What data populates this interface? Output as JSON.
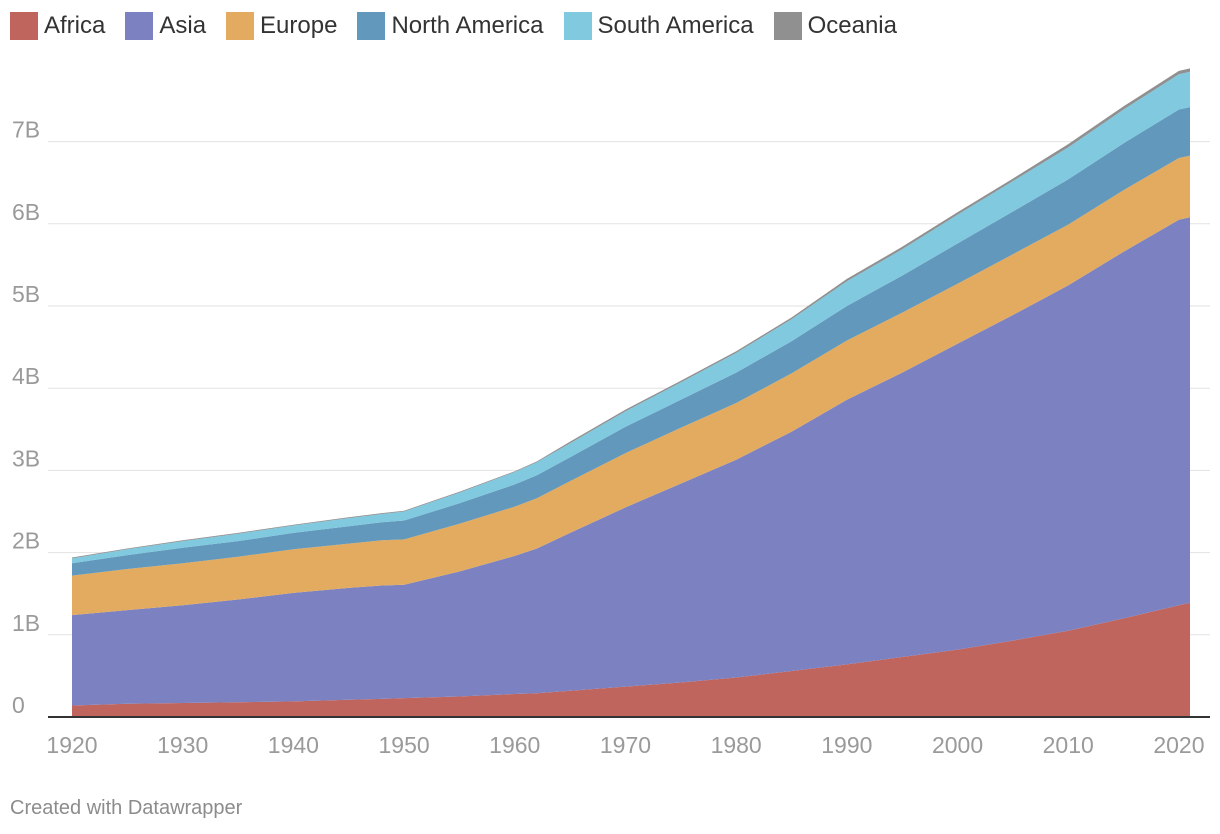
{
  "chart_data": {
    "type": "area",
    "stacked": true,
    "title": "",
    "xlabel": "",
    "ylabel": "",
    "x": [
      1920,
      1925,
      1930,
      1935,
      1940,
      1945,
      1948,
      1950,
      1955,
      1960,
      1962,
      1965,
      1970,
      1975,
      1980,
      1985,
      1990,
      1995,
      2000,
      2005,
      2010,
      2015,
      2020,
      2021
    ],
    "series": [
      {
        "name": "Africa",
        "color": "#c0645e",
        "values": [
          0.14,
          0.16,
          0.17,
          0.18,
          0.19,
          0.21,
          0.22,
          0.23,
          0.25,
          0.28,
          0.29,
          0.32,
          0.37,
          0.42,
          0.48,
          0.56,
          0.64,
          0.73,
          0.82,
          0.93,
          1.05,
          1.2,
          1.36,
          1.39
        ]
      },
      {
        "name": "Asia",
        "color": "#7c82c1",
        "values": [
          1.1,
          1.14,
          1.19,
          1.25,
          1.32,
          1.36,
          1.38,
          1.38,
          1.52,
          1.68,
          1.76,
          1.92,
          2.18,
          2.42,
          2.65,
          2.91,
          3.22,
          3.46,
          3.72,
          3.96,
          4.2,
          4.46,
          4.69,
          4.69
        ]
      },
      {
        "name": "Europe",
        "color": "#e2ab5f",
        "values": [
          0.48,
          0.5,
          0.51,
          0.52,
          0.53,
          0.54,
          0.55,
          0.55,
          0.58,
          0.6,
          0.61,
          0.63,
          0.66,
          0.68,
          0.69,
          0.71,
          0.72,
          0.73,
          0.73,
          0.74,
          0.74,
          0.75,
          0.75,
          0.75
        ]
      },
      {
        "name": "North America",
        "color": "#6198bb",
        "values": [
          0.15,
          0.17,
          0.19,
          0.19,
          0.2,
          0.21,
          0.22,
          0.23,
          0.25,
          0.27,
          0.28,
          0.29,
          0.32,
          0.34,
          0.37,
          0.39,
          0.42,
          0.45,
          0.49,
          0.52,
          0.55,
          0.57,
          0.59,
          0.59
        ]
      },
      {
        "name": "South America",
        "color": "#81c9df",
        "values": [
          0.06,
          0.07,
          0.08,
          0.09,
          0.09,
          0.1,
          0.1,
          0.11,
          0.13,
          0.15,
          0.16,
          0.17,
          0.19,
          0.21,
          0.24,
          0.27,
          0.3,
          0.32,
          0.35,
          0.37,
          0.39,
          0.41,
          0.43,
          0.43
        ]
      },
      {
        "name": "Oceania",
        "color": "#909090",
        "values": [
          0.01,
          0.01,
          0.01,
          0.01,
          0.01,
          0.01,
          0.01,
          0.01,
          0.01,
          0.01,
          0.01,
          0.02,
          0.02,
          0.02,
          0.02,
          0.02,
          0.03,
          0.03,
          0.03,
          0.03,
          0.04,
          0.04,
          0.04,
          0.04
        ]
      }
    ],
    "y_ticks": [
      0,
      1,
      2,
      3,
      4,
      5,
      6,
      7
    ],
    "y_tick_labels": [
      "0",
      "1B",
      "2B",
      "3B",
      "4B",
      "5B",
      "6B",
      "7B"
    ],
    "x_ticks": [
      1920,
      1930,
      1940,
      1950,
      1960,
      1970,
      1980,
      1990,
      2000,
      2010,
      2020
    ],
    "x_tick_labels": [
      "1920",
      "1930",
      "1940",
      "1950",
      "1960",
      "1970",
      "1980",
      "1990",
      "2000",
      "2010",
      "2020"
    ],
    "ylim": [
      0,
      8
    ],
    "xlim": [
      1920,
      2021
    ],
    "legend_position": "top-left",
    "grid": true
  },
  "legend": [
    {
      "label": "Africa",
      "color": "#c0645e"
    },
    {
      "label": "Asia",
      "color": "#7c82c1"
    },
    {
      "label": "Europe",
      "color": "#e2ab5f"
    },
    {
      "label": "North America",
      "color": "#6198bb"
    },
    {
      "label": "South America",
      "color": "#81c9df"
    },
    {
      "label": "Oceania",
      "color": "#909090"
    }
  ],
  "footer": {
    "credit": "Created with Datawrapper"
  }
}
